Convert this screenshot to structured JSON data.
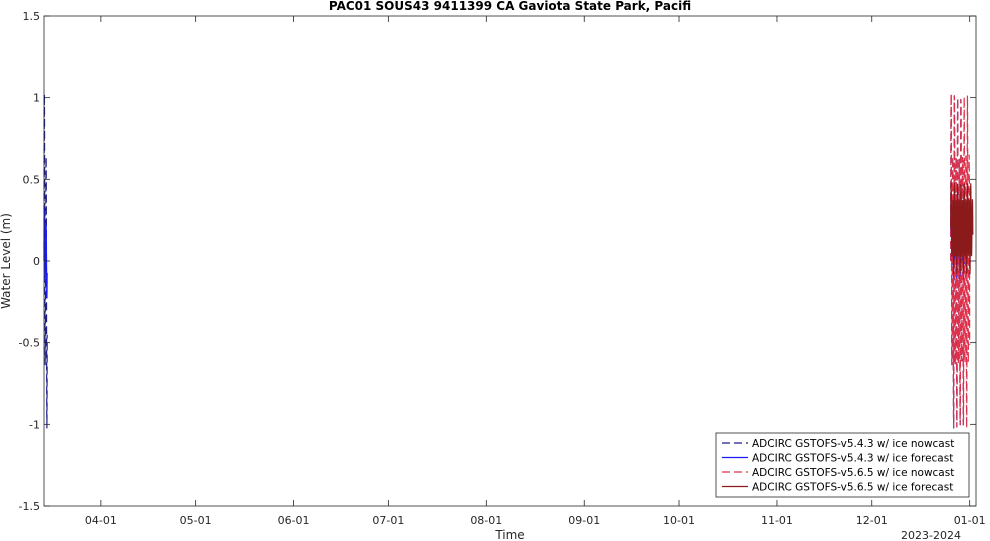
{
  "chart_data": {
    "type": "line",
    "title": "PAC01 SOUS43 9411399 CA Gaviota State Park, Pacifi",
    "xlabel": "Time",
    "ylabel": "Water Level (m)",
    "x_axis_secondary_label": "2023-2024",
    "ylim": [
      -1.5,
      1.5
    ],
    "xlim": [
      "2023-03-14",
      "2024-01-03"
    ],
    "x_ticks": [
      "04-01",
      "05-01",
      "06-01",
      "07-01",
      "08-01",
      "09-01",
      "10-01",
      "11-01",
      "12-01",
      "01-01"
    ],
    "x_tick_dates": [
      "2023-04-01",
      "2023-05-01",
      "2023-06-01",
      "2023-07-01",
      "2023-08-01",
      "2023-09-01",
      "2023-10-01",
      "2023-11-01",
      "2023-12-01",
      "2024-01-01"
    ],
    "y_ticks": [
      "-1.5",
      "-1",
      "-0.5",
      "0",
      "0.5",
      "1",
      "1.5"
    ],
    "y_tick_values": [
      -1.5,
      -1,
      -0.5,
      0,
      0.5,
      1,
      1.5
    ],
    "grid": false,
    "legend_position": "bottom-right",
    "series": [
      {
        "name": "ADCIRC GSTOFS-v5.4.3 w/ ice nowcast",
        "color": "#1c1c8c",
        "dash": "dashed",
        "segments": [
          {
            "start": "2023-03-14",
            "end": "2023-03-15",
            "amplitude": 1.1,
            "offset": 0.0
          },
          {
            "start": "2023-12-26",
            "end": "2023-12-30",
            "amplitude": 1.1,
            "offset": 0.0
          }
        ]
      },
      {
        "name": "ADCIRC GSTOFS-v5.4.3 w/ ice forecast",
        "color": "#1a1aff",
        "dash": "solid",
        "segments": [
          {
            "start": "2023-03-14",
            "end": "2023-03-15",
            "amplitude": 0.3,
            "offset": 0.05
          },
          {
            "start": "2023-12-26",
            "end": "2023-12-31",
            "amplitude": 0.3,
            "offset": 0.15
          }
        ]
      },
      {
        "name": "ADCIRC GSTOFS-v5.6.5 w/ ice nowcast",
        "color": "#e0304a",
        "dash": "dashed",
        "segments": [
          {
            "start": "2023-12-26",
            "end": "2024-01-01",
            "amplitude": 1.1,
            "offset": 0.0
          }
        ]
      },
      {
        "name": "ADCIRC GSTOFS-v5.6.5 w/ ice forecast",
        "color": "#8b1a1a",
        "dash": "solid",
        "segments": [
          {
            "start": "2023-12-26",
            "end": "2024-01-02",
            "amplitude": 0.3,
            "offset": 0.2
          }
        ]
      }
    ]
  }
}
